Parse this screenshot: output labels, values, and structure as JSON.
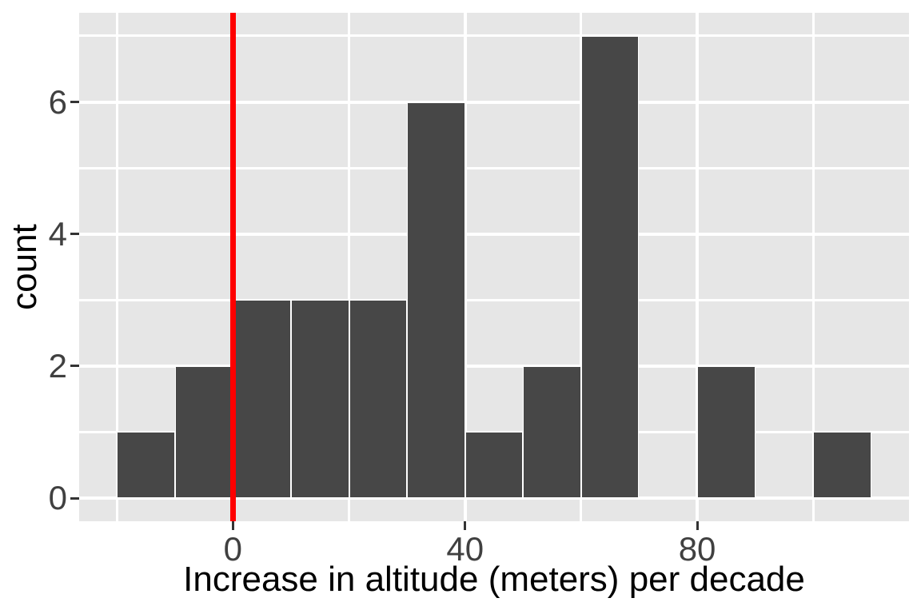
{
  "figure": {
    "background": "#ffffff"
  },
  "chart_data": {
    "type": "bar",
    "subtype": "histogram",
    "title": "",
    "xlabel": "Increase in altitude (meters) per decade",
    "ylabel": "count",
    "bins": {
      "x_start": -20,
      "bin_width": 10,
      "counts": [
        1,
        2,
        3,
        3,
        3,
        6,
        1,
        2,
        7,
        0,
        2,
        0,
        1
      ]
    },
    "x_ticks": {
      "values": [
        0,
        40,
        80
      ],
      "labels": [
        "0",
        "40",
        "80"
      ]
    },
    "y_ticks": {
      "values": [
        0,
        2,
        4,
        6
      ],
      "labels": [
        "0",
        "2",
        "4",
        "6"
      ]
    },
    "x_minor": [
      -20,
      20,
      60,
      100
    ],
    "y_minor": [
      1,
      3,
      5,
      7
    ],
    "xlim": [
      -26.5,
      116.5
    ],
    "ylim": [
      -0.35,
      7.35
    ],
    "grid": true,
    "legend": "none",
    "vline": {
      "x": 0,
      "color": "#ff0000"
    },
    "colors": {
      "bar_fill": "#474747",
      "bar_stroke": "#ffffff",
      "panel_bg": "#e6e6e6",
      "grid": "#ffffff",
      "tick_mark": "#333333",
      "tick_text": "#404040",
      "title_text": "#000000"
    }
  }
}
